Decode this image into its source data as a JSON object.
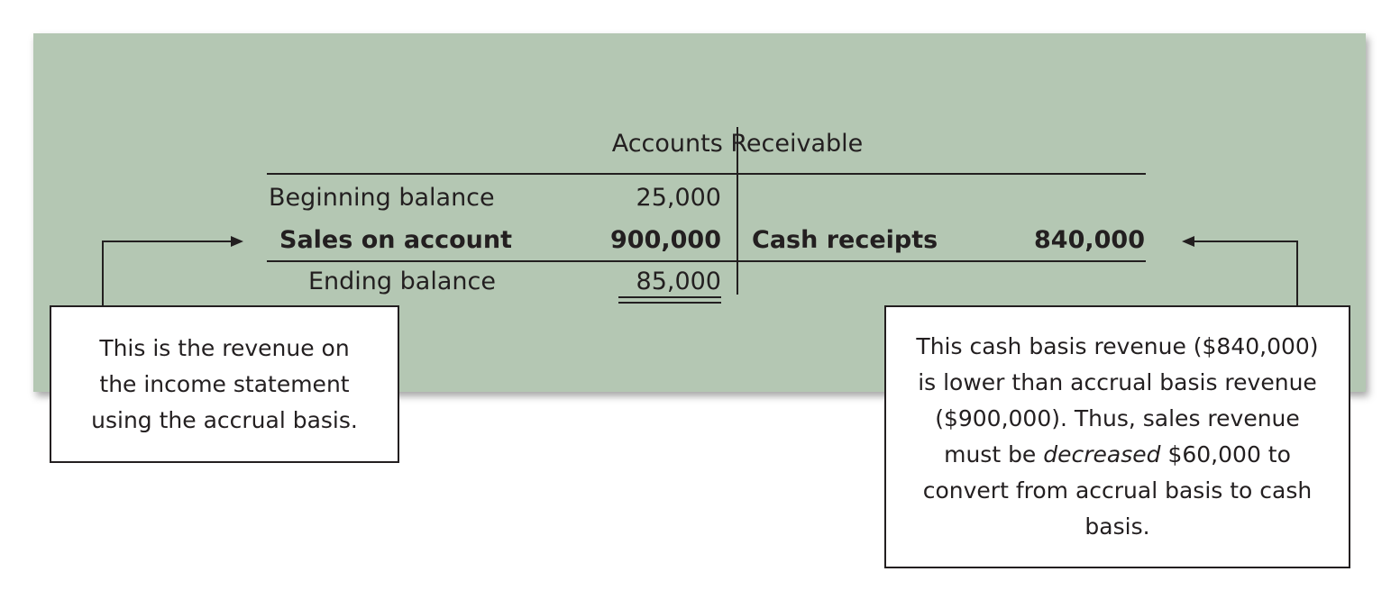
{
  "t_account": {
    "title": "Accounts Receivable",
    "rows": [
      {
        "label": "Beginning balance",
        "amount": "25,000"
      },
      {
        "label": "Sales on account",
        "amount": "900,000"
      },
      {
        "label": "Ending balance",
        "amount": "85,000"
      }
    ],
    "credit": {
      "label": "Cash receipts",
      "amount": "840,000"
    }
  },
  "callouts": {
    "left_text": "This is the revenue on the income statement using the accrual basis.",
    "right_part1": "This cash basis revenue ($840,000) is lower than accrual basis revenue ($900,000). Thus, sales revenue must be ",
    "right_emphasis": "decreased",
    "right_part2": " $60,000 to convert from accrual basis to cash basis."
  },
  "colors": {
    "panel": "#b4c7b3",
    "ink": "#231f20",
    "box": "#ffffff"
  }
}
